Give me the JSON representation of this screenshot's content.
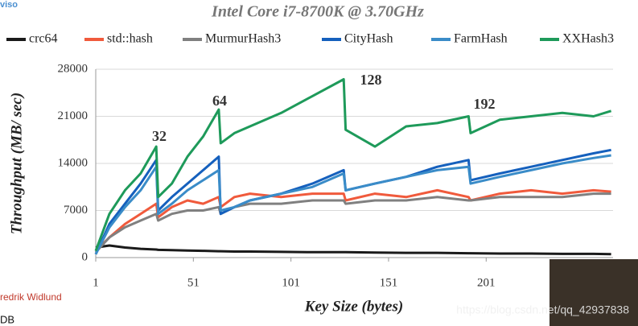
{
  "chart_data": {
    "type": "line",
    "title": "Intel Core i7-8700K @ 3.70GHz",
    "x_label": "Key Size (bytes)",
    "y_label": "Throughput (MB/ sec)",
    "annotations": [
      "32",
      "64",
      "128",
      "192"
    ],
    "watermarks": [
      "viso",
      "redrik Widlund",
      "DB",
      "https://blog.csdn.net/qq_42937838"
    ],
    "x": [
      1,
      8,
      16,
      24,
      32,
      33,
      40,
      48,
      56,
      64,
      65,
      72,
      80,
      96,
      112,
      128,
      129,
      144,
      160,
      176,
      192,
      193,
      208,
      224,
      240,
      256,
      265
    ],
    "xlim": [
      1,
      266
    ],
    "xticks": [
      1,
      51,
      101,
      151,
      201
    ],
    "ylim": [
      0,
      28000
    ],
    "yticks": [
      0,
      7000,
      14000,
      21000,
      28000
    ],
    "grid": true,
    "series": [
      {
        "name": "crc64",
        "color": "#1a1a1a",
        "values": [
          1500,
          1800,
          1500,
          1300,
          1200,
          1150,
          1100,
          1050,
          1000,
          950,
          950,
          900,
          900,
          850,
          800,
          800,
          800,
          750,
          700,
          700,
          650,
          650,
          600,
          600,
          550,
          550,
          500
        ]
      },
      {
        "name": "std::hash",
        "color": "#f05a3c",
        "values": [
          1000,
          3000,
          5000,
          6500,
          8000,
          6000,
          7500,
          8500,
          8000,
          9000,
          7500,
          9000,
          9500,
          9000,
          9500,
          9500,
          8500,
          9500,
          9000,
          10000,
          9000,
          8500,
          9500,
          10000,
          9500,
          10000,
          9800
        ]
      },
      {
        "name": "MurmurHash3",
        "color": "#808080",
        "values": [
          800,
          3000,
          4500,
          5500,
          6500,
          5500,
          6500,
          7000,
          7000,
          7500,
          6500,
          7500,
          8000,
          8000,
          8500,
          8500,
          8000,
          8500,
          8500,
          9000,
          8500,
          8500,
          9000,
          9000,
          9000,
          9500,
          9500
        ]
      },
      {
        "name": "CityHash",
        "color": "#1560bd",
        "values": [
          500,
          5000,
          8000,
          11000,
          14500,
          7000,
          9000,
          11000,
          13000,
          15000,
          6500,
          7500,
          8500,
          9500,
          11000,
          13000,
          10000,
          11000,
          12000,
          13500,
          14500,
          11500,
          12500,
          13500,
          14500,
          15500,
          16000
        ]
      },
      {
        "name": "FarmHash",
        "color": "#3a8cc8",
        "values": [
          500,
          4500,
          7500,
          10000,
          13500,
          6500,
          8000,
          10000,
          11500,
          13000,
          7000,
          7500,
          8500,
          9500,
          10500,
          12500,
          10000,
          11000,
          12000,
          13000,
          13500,
          11000,
          12000,
          13000,
          14000,
          14800,
          15200
        ]
      },
      {
        "name": "XXHash3",
        "color": "#1e9a5a",
        "values": [
          1000,
          6500,
          10000,
          12500,
          16500,
          9000,
          11000,
          15000,
          18000,
          22000,
          17000,
          18500,
          19500,
          21500,
          24000,
          26500,
          19000,
          16500,
          19500,
          20000,
          21000,
          18500,
          20500,
          21000,
          21500,
          21000,
          21800
        ]
      }
    ]
  }
}
